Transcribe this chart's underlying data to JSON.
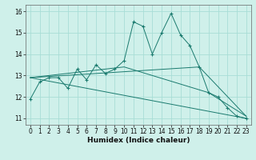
{
  "xlabel": "Humidex (Indice chaleur)",
  "background_color": "#cff0ea",
  "grid_color": "#a8ddd6",
  "line_color": "#1a7a6e",
  "xlim": [
    -0.5,
    23.5
  ],
  "ylim": [
    10.7,
    16.3
  ],
  "yticks": [
    11,
    12,
    13,
    14,
    15,
    16
  ],
  "xticks": [
    0,
    1,
    2,
    3,
    4,
    5,
    6,
    7,
    8,
    9,
    10,
    11,
    12,
    13,
    14,
    15,
    16,
    17,
    18,
    19,
    20,
    21,
    22,
    23
  ],
  "line1_x": [
    0,
    1,
    2,
    3,
    4,
    5,
    6,
    7,
    8,
    9,
    10,
    11,
    12,
    13,
    14,
    15,
    16,
    17,
    18,
    19,
    20,
    21,
    22,
    23
  ],
  "line1_y": [
    11.9,
    12.7,
    12.9,
    12.9,
    12.4,
    13.3,
    12.8,
    13.5,
    13.1,
    13.3,
    13.7,
    15.5,
    15.3,
    14.0,
    15.0,
    15.9,
    14.9,
    14.4,
    13.4,
    12.2,
    12.0,
    11.5,
    11.1,
    11.0
  ],
  "line2_x": [
    0,
    23
  ],
  "line2_y": [
    12.9,
    11.0
  ],
  "line3_x": [
    0,
    18,
    23
  ],
  "line3_y": [
    12.9,
    13.4,
    11.1
  ],
  "line4_x": [
    0,
    10,
    19,
    23
  ],
  "line4_y": [
    12.9,
    13.4,
    12.2,
    11.1
  ]
}
